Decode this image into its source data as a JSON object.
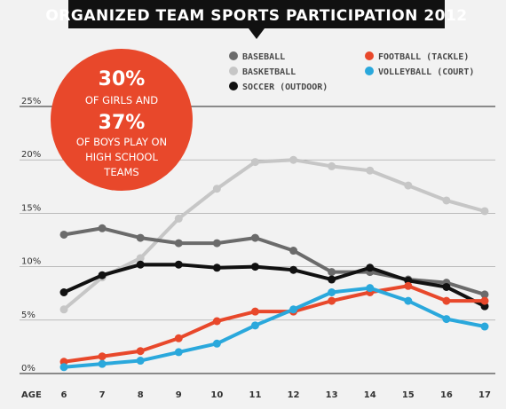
{
  "title": "ORGANIZED TEAM SPORTS PARTICIPATION 2012",
  "callout": {
    "line1": "30%",
    "line2": "OF GIRLS AND",
    "line3": "37%",
    "line4": "OF BOYS PLAY ON",
    "line5": "HIGH SCHOOL",
    "line6": "TEAMS",
    "color": "#e8482b"
  },
  "chart_data": {
    "type": "line",
    "title": "ORGANIZED TEAM SPORTS PARTICIPATION 2012",
    "xlabel": "AGE",
    "ylabel": "",
    "x": [
      6,
      7,
      8,
      9,
      10,
      11,
      12,
      13,
      14,
      15,
      16,
      17
    ],
    "ylim": [
      0,
      25
    ],
    "yticks": [
      0,
      5,
      10,
      15,
      20,
      25
    ],
    "ytick_labels": [
      "0%",
      "5%",
      "10%",
      "15%",
      "20%",
      "25%"
    ],
    "grid": "horizontal",
    "legend_position": "top-right",
    "series": [
      {
        "name": "BASEBALL",
        "color": "#6b6b6b",
        "values": [
          13.0,
          13.6,
          12.7,
          12.2,
          12.2,
          12.7,
          11.5,
          9.5,
          9.5,
          8.8,
          8.5,
          7.4
        ]
      },
      {
        "name": "BASKETBALL",
        "color": "#c6c6c6",
        "values": [
          6.0,
          9.0,
          10.8,
          14.5,
          17.3,
          19.8,
          20.0,
          19.4,
          19.0,
          17.6,
          16.2,
          15.2
        ]
      },
      {
        "name": "SOCCER (OUTDOOR)",
        "color": "#111111",
        "values": [
          7.6,
          9.2,
          10.2,
          10.2,
          9.9,
          10.0,
          9.7,
          8.8,
          9.9,
          8.7,
          8.1,
          6.3
        ]
      },
      {
        "name": "FOOTBALL (TACKLE)",
        "color": "#e8482b",
        "values": [
          1.1,
          1.6,
          2.1,
          3.3,
          4.9,
          5.8,
          5.8,
          6.8,
          7.6,
          8.2,
          6.8,
          6.8
        ]
      },
      {
        "name": "VOLLEYBALL (COURT)",
        "color": "#2aa8dc",
        "values": [
          0.6,
          0.9,
          1.2,
          2.0,
          2.8,
          4.5,
          6.0,
          7.6,
          8.0,
          6.8,
          5.1,
          4.4
        ]
      }
    ]
  }
}
